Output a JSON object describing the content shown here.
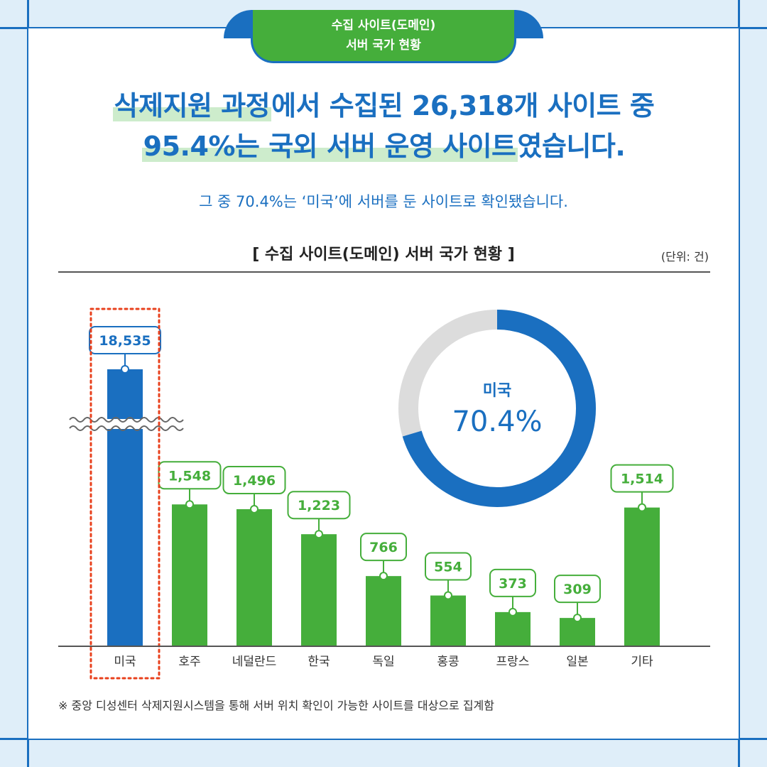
{
  "header": {
    "tab_line1": "수집 사이트(도메인)",
    "tab_line2": "서버 국가 현황",
    "headline_line1_hl": "삭제지원 과정",
    "headline_line1_rest": "에서 수집된 26,318개 사이트 중",
    "headline_line2_hl": "95.4%는 국외 서버 운영 사이트",
    "headline_line2_rest": "였습니다.",
    "subtitle": "그 중 70.4%는 ‘미국’에 서버를 둔 사이트로 확인됐습니다."
  },
  "chart_title": "[ 수집 사이트(도메인) 서버 국가 현황 ]",
  "unit": "(단위: 건)",
  "footnote": "※ 중앙 디성센터 삭제지원시스템을 통해 서버 위치 확인이 가능한 사이트를 대상으로 집계함",
  "colors": {
    "blue": "#1a6fc0",
    "green": "#45ae3b",
    "grey": "#dcdcdc",
    "highlight": "#e8401c"
  },
  "chart_data": [
    {
      "type": "bar",
      "axis_break": true,
      "title": "[ 수집 사이트(도메인) 서버 국가 현황 ]",
      "unit": "(단위: 건)",
      "categories": [
        "미국",
        "호주",
        "네덜란드",
        "한국",
        "독일",
        "홍콩",
        "프랑스",
        "일본",
        "기타"
      ],
      "values": [
        18535,
        1548,
        1496,
        1223,
        766,
        554,
        373,
        309,
        1514
      ],
      "value_labels": [
        "18,535",
        "1,548",
        "1,496",
        "1,223",
        "766",
        "554",
        "373",
        "309",
        "1,514"
      ],
      "highlighted_category": "미국",
      "grid": false
    },
    {
      "type": "pie",
      "donut": true,
      "label": "미국",
      "value_label": "70.4%",
      "value": 70.4
    }
  ]
}
